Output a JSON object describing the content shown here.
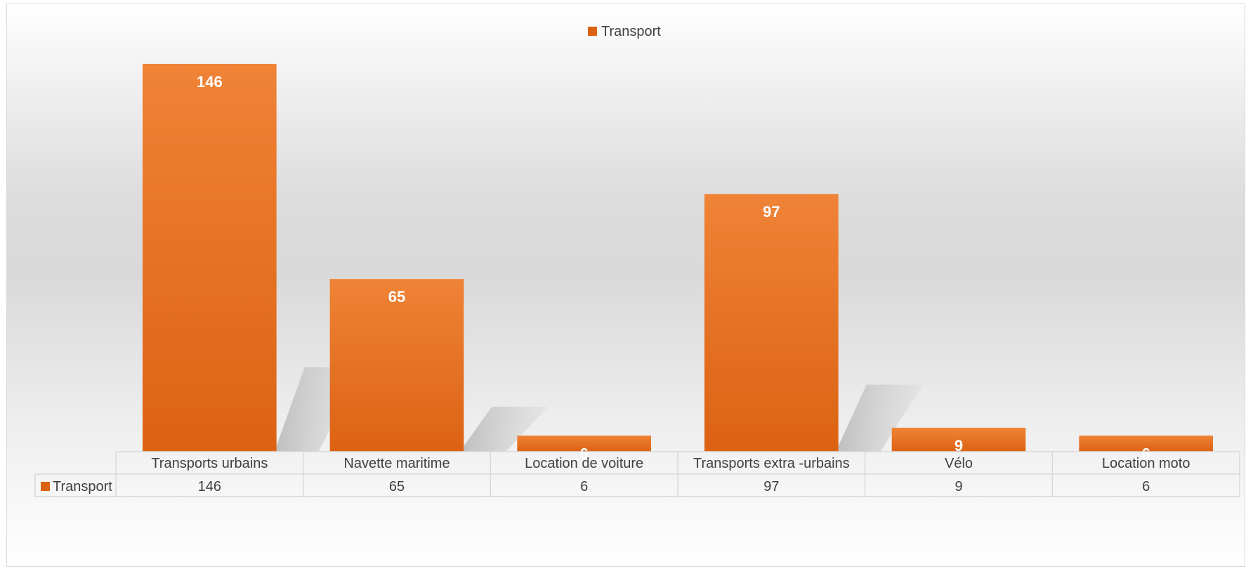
{
  "chart_data": {
    "type": "bar",
    "categories": [
      "Transports urbains",
      "Navette maritime",
      "Location de voiture",
      "Transports extra -urbains",
      "Vélo",
      "Location moto"
    ],
    "series": [
      {
        "name": "Transport",
        "values": [
          146,
          65,
          6,
          97,
          9,
          6
        ]
      }
    ],
    "ylim": [
      0,
      160
    ],
    "legend": "top-center",
    "data_table": true,
    "grid": false,
    "colors": {
      "bar_top": "#ef8336",
      "bar_bottom": "#dc6213",
      "shadow": "#b4b4b4",
      "table_border": "#d9d9d9",
      "text": "#404040",
      "label": "#ffffff"
    }
  }
}
